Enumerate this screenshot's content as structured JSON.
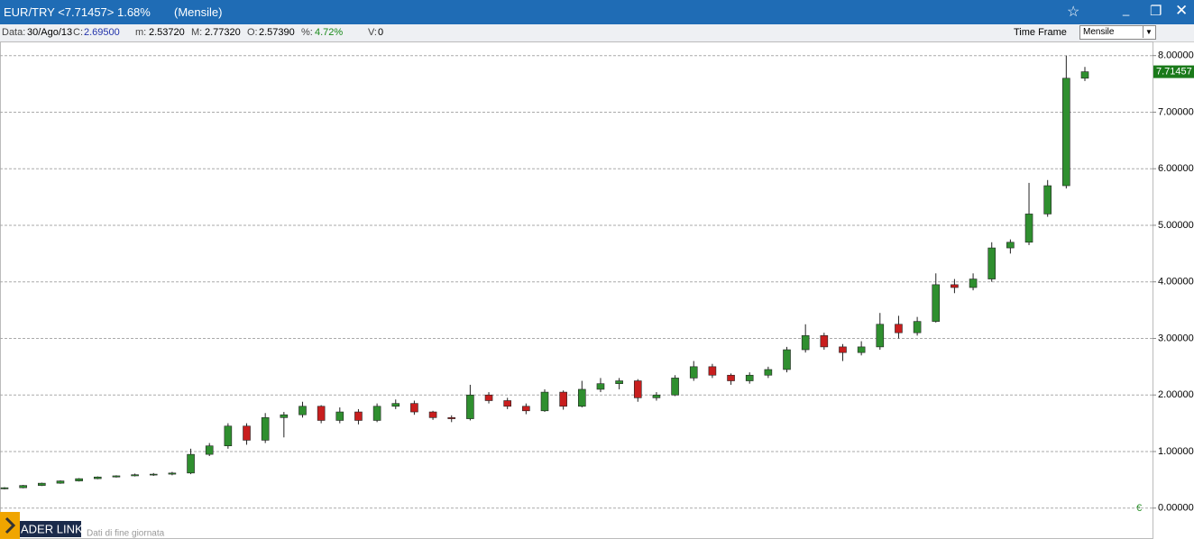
{
  "window": {
    "title": "EUR/TRY <7.71457> 1.68%",
    "period": "(Mensile)"
  },
  "info": {
    "date_label": "Data:",
    "date": "30/Ago/13",
    "c_label": "C:",
    "c": "2.69500",
    "m_label": "m:",
    "m": "2.53720",
    "M_label": "M:",
    "M": "2.77320",
    "o_label": "O:",
    "o": "2.57390",
    "pct_label": "%:",
    "pct": "4.72%",
    "v_label": "V:",
    "v": "0"
  },
  "time_frame": {
    "label": "Time Frame",
    "value": "Mensile"
  },
  "logo": "ADER LINK",
  "footer_note": "Dati di fine giornata",
  "currency_marker": "€",
  "chart_data": {
    "type": "candlestick",
    "up_color": "#2f8f2f",
    "down_color": "#c81e1e",
    "grid": true,
    "ylim": [
      -0.53,
      8.25
    ],
    "yticks": [
      {
        "value": 0,
        "label": "0.00000"
      },
      {
        "value": 1,
        "label": "1.00000"
      },
      {
        "value": 2,
        "label": "2.00000"
      },
      {
        "value": 3,
        "label": "3.00000"
      },
      {
        "value": 4,
        "label": "4.00000"
      },
      {
        "value": 5,
        "label": "5.00000"
      },
      {
        "value": 6,
        "label": "6.00000"
      },
      {
        "value": 7,
        "label": "7.00000"
      },
      {
        "value": 8,
        "label": "8.00000"
      }
    ],
    "open": [
      0.34,
      0.36,
      0.4,
      0.44,
      0.48,
      0.52,
      0.55,
      0.57,
      0.59,
      0.6,
      0.62,
      0.95,
      1.1,
      1.45,
      1.2,
      1.6,
      1.65,
      1.8,
      1.55,
      1.7,
      1.55,
      1.8,
      1.85,
      1.7,
      1.6,
      1.58,
      2.0,
      1.9,
      1.8,
      1.72,
      2.05,
      1.8,
      2.1,
      2.2,
      2.25,
      1.95,
      2.0,
      2.3,
      2.5,
      2.35,
      2.25,
      2.35,
      2.45,
      2.8,
      3.05,
      2.85,
      2.75,
      2.85,
      3.25,
      3.1,
      3.3,
      3.95,
      3.9,
      4.05,
      4.6,
      4.7,
      5.2,
      5.7,
      7.6
    ],
    "high": [
      0.37,
      0.41,
      0.45,
      0.49,
      0.53,
      0.56,
      0.58,
      0.61,
      0.62,
      0.64,
      1.05,
      1.15,
      1.5,
      1.5,
      1.68,
      1.7,
      1.88,
      1.82,
      1.78,
      1.75,
      1.85,
      1.92,
      1.9,
      1.72,
      1.64,
      2.18,
      2.05,
      1.95,
      1.85,
      2.1,
      2.08,
      2.25,
      2.3,
      2.3,
      2.28,
      2.05,
      2.35,
      2.6,
      2.55,
      2.38,
      2.4,
      2.5,
      2.85,
      3.25,
      3.1,
      2.9,
      2.95,
      3.45,
      3.4,
      3.38,
      4.15,
      4.05,
      4.15,
      4.7,
      4.75,
      5.75,
      5.8,
      8.0,
      7.8
    ],
    "low": [
      0.33,
      0.35,
      0.39,
      0.43,
      0.47,
      0.51,
      0.54,
      0.56,
      0.57,
      0.58,
      0.6,
      0.92,
      1.05,
      1.12,
      1.15,
      1.25,
      1.6,
      1.5,
      1.5,
      1.48,
      1.52,
      1.75,
      1.65,
      1.56,
      1.52,
      1.55,
      1.85,
      1.75,
      1.66,
      1.7,
      1.74,
      1.78,
      2.05,
      2.1,
      1.88,
      1.9,
      1.98,
      2.25,
      2.3,
      2.18,
      2.2,
      2.3,
      2.4,
      2.75,
      2.8,
      2.6,
      2.7,
      2.8,
      3.0,
      3.05,
      3.28,
      3.8,
      3.85,
      4.0,
      4.5,
      4.65,
      5.15,
      5.65,
      7.55
    ],
    "close": [
      0.36,
      0.4,
      0.44,
      0.48,
      0.52,
      0.55,
      0.57,
      0.59,
      0.6,
      0.62,
      0.95,
      1.1,
      1.45,
      1.2,
      1.6,
      1.65,
      1.8,
      1.55,
      1.7,
      1.55,
      1.8,
      1.85,
      1.7,
      1.6,
      1.58,
      2.0,
      1.9,
      1.8,
      1.72,
      2.05,
      1.8,
      2.1,
      2.2,
      2.25,
      1.95,
      2.0,
      2.3,
      2.5,
      2.35,
      2.25,
      2.35,
      2.45,
      2.8,
      3.05,
      2.85,
      2.75,
      2.85,
      3.25,
      3.1,
      3.3,
      3.95,
      3.9,
      4.05,
      4.6,
      4.7,
      5.2,
      5.7,
      7.6,
      7.71457
    ]
  }
}
